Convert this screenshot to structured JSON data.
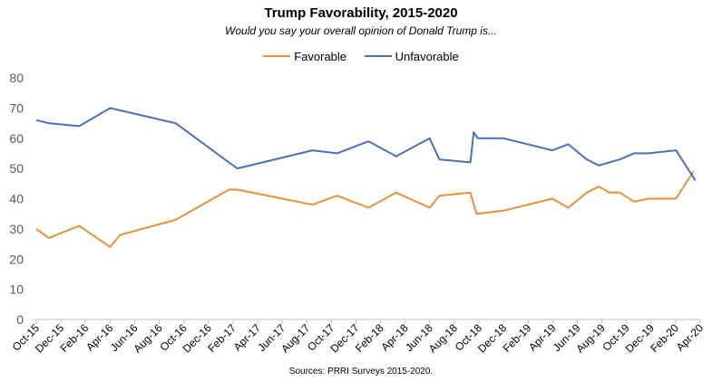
{
  "chart_data": {
    "type": "line",
    "title": "Trump Favorability, 2015-2020",
    "subtitle": "Would you say your overall opinion of Donald Trump is...",
    "source": "Sources: PRRI Surveys 2015-2020.",
    "xlabel": "",
    "ylabel": "",
    "ylim": [
      0,
      80
    ],
    "yticks": [
      0,
      10,
      20,
      30,
      40,
      50,
      60,
      70,
      80
    ],
    "xlim": [
      "2015-10-01",
      "2020-04-01"
    ],
    "xticks": [
      "Oct-15",
      "Dec-15",
      "Feb-16",
      "Apr-16",
      "Jun-16",
      "Aug-16",
      "Oct-16",
      "Dec-16",
      "Feb-17",
      "Apr-17",
      "Jun-17",
      "Aug-17",
      "Oct-17",
      "Dec-17",
      "Feb-18",
      "Apr-18",
      "Jun-18",
      "Aug-18",
      "Oct-18",
      "Dec-18",
      "Feb-19",
      "Apr-19",
      "Jun-19",
      "Aug-19",
      "Oct-19",
      "Dec-19",
      "Feb-20",
      "Apr-20"
    ],
    "grid": false,
    "legend": "top-center",
    "series": [
      {
        "name": "Favorable",
        "color": "#E8913A",
        "points": [
          [
            "2015-10-01",
            30
          ],
          [
            "2015-11-01",
            27
          ],
          [
            "2016-01-15",
            31
          ],
          [
            "2016-04-01",
            24
          ],
          [
            "2016-04-25",
            28
          ],
          [
            "2016-09-10",
            33
          ],
          [
            "2017-01-20",
            43
          ],
          [
            "2017-02-10",
            43
          ],
          [
            "2017-08-15",
            38
          ],
          [
            "2017-10-15",
            41
          ],
          [
            "2018-01-01",
            37
          ],
          [
            "2018-03-10",
            42
          ],
          [
            "2018-06-01",
            37
          ],
          [
            "2018-06-25",
            41
          ],
          [
            "2018-09-10",
            42
          ],
          [
            "2018-09-25",
            35
          ],
          [
            "2018-12-01",
            36
          ],
          [
            "2019-04-01",
            40
          ],
          [
            "2019-05-10",
            37
          ],
          [
            "2019-06-25",
            42
          ],
          [
            "2019-07-25",
            44
          ],
          [
            "2019-08-20",
            42
          ],
          [
            "2019-09-15",
            42
          ],
          [
            "2019-10-20",
            39
          ],
          [
            "2019-11-25",
            40
          ],
          [
            "2020-02-01",
            40
          ],
          [
            "2020-03-15",
            49
          ]
        ]
      },
      {
        "name": "Unfavorable",
        "color": "#4A72B8",
        "points": [
          [
            "2015-10-01",
            66
          ],
          [
            "2015-11-01",
            65
          ],
          [
            "2016-01-15",
            64
          ],
          [
            "2016-04-01",
            70
          ],
          [
            "2016-09-10",
            65
          ],
          [
            "2017-01-20",
            52
          ],
          [
            "2017-02-10",
            50
          ],
          [
            "2017-08-15",
            56
          ],
          [
            "2017-10-15",
            55
          ],
          [
            "2018-01-01",
            59
          ],
          [
            "2018-03-10",
            54
          ],
          [
            "2018-06-01",
            60
          ],
          [
            "2018-06-25",
            53
          ],
          [
            "2018-09-10",
            52
          ],
          [
            "2018-09-18",
            62
          ],
          [
            "2018-09-28",
            60
          ],
          [
            "2018-12-01",
            60
          ],
          [
            "2019-04-01",
            56
          ],
          [
            "2019-05-10",
            58
          ],
          [
            "2019-06-25",
            53
          ],
          [
            "2019-07-25",
            51
          ],
          [
            "2019-09-15",
            53
          ],
          [
            "2019-10-20",
            55
          ],
          [
            "2019-11-25",
            55
          ],
          [
            "2020-02-01",
            56
          ],
          [
            "2020-03-20",
            46
          ]
        ]
      }
    ]
  }
}
